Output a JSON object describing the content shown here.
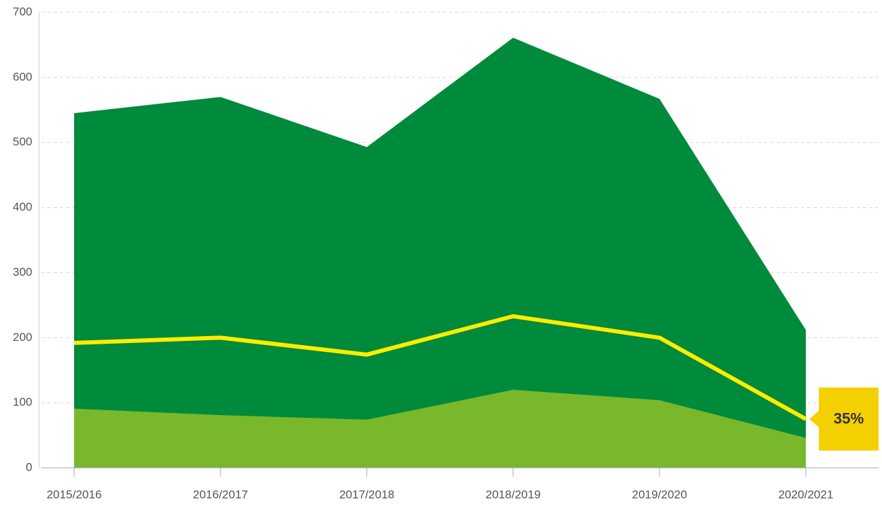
{
  "chart_data": {
    "type": "area",
    "categories": [
      "2015/2016",
      "2016/2017",
      "2017/2018",
      "2018/2019",
      "2019/2020",
      "2020/2021"
    ],
    "series": [
      {
        "color": "#008a3c",
        "values": [
          545,
          570,
          493,
          661,
          567,
          212
        ]
      },
      {
        "color": "#78b82a",
        "values": [
          91,
          81,
          74,
          120,
          104,
          46
        ]
      },
      {
        "type": "line",
        "color": "#ffec00",
        "values": [
          192,
          200,
          174,
          233,
          200,
          75
        ]
      }
    ],
    "annotation": {
      "text": "35%",
      "color": "#f5d000"
    },
    "ylim": [
      0,
      700
    ],
    "yticks": [
      0,
      100,
      200,
      300,
      400,
      500,
      600,
      700
    ],
    "grid": true
  }
}
